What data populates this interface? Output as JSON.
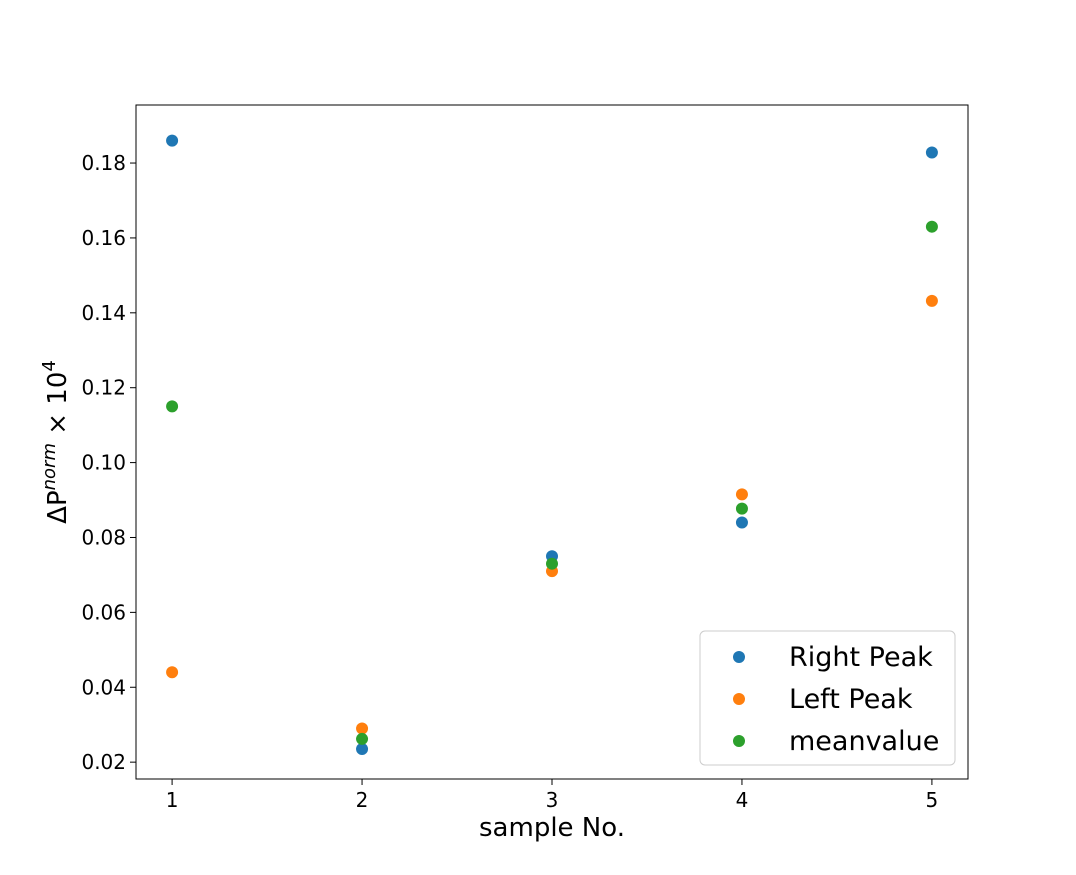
{
  "chart_data": {
    "type": "scatter",
    "title": "",
    "xlabel": "sample No.",
    "ylabel": {
      "base": "ΔP",
      "superscript": "norm",
      "times": " × 10",
      "exponent": "4"
    },
    "xlim": [
      0.81,
      5.19
    ],
    "ylim": [
      0.0155,
      0.1955
    ],
    "xticks": [
      1,
      2,
      3,
      4,
      5
    ],
    "xtick_labels": [
      "1",
      "2",
      "3",
      "4",
      "5"
    ],
    "yticks": [
      0.02,
      0.04,
      0.06,
      0.08,
      0.1,
      0.12,
      0.14,
      0.16,
      0.18
    ],
    "ytick_labels": [
      "0.02",
      "0.04",
      "0.06",
      "0.08",
      "0.10",
      "0.12",
      "0.14",
      "0.16",
      "0.18"
    ],
    "grid": false,
    "legend_position": "bottom-right",
    "series": [
      {
        "name": "Right Peak",
        "color": "#1f77b4",
        "x": [
          1,
          2,
          3,
          4,
          5
        ],
        "y": [
          0.186,
          0.0235,
          0.075,
          0.084,
          0.1828
        ]
      },
      {
        "name": "Left Peak",
        "color": "#ff7f0e",
        "x": [
          1,
          2,
          3,
          4,
          5
        ],
        "y": [
          0.044,
          0.029,
          0.071,
          0.0915,
          0.1432
        ]
      },
      {
        "name": "meanvalue",
        "color": "#2ca02c",
        "x": [
          1,
          2,
          3,
          4,
          5
        ],
        "y": [
          0.115,
          0.0262,
          0.073,
          0.0877,
          0.163
        ]
      }
    ]
  }
}
